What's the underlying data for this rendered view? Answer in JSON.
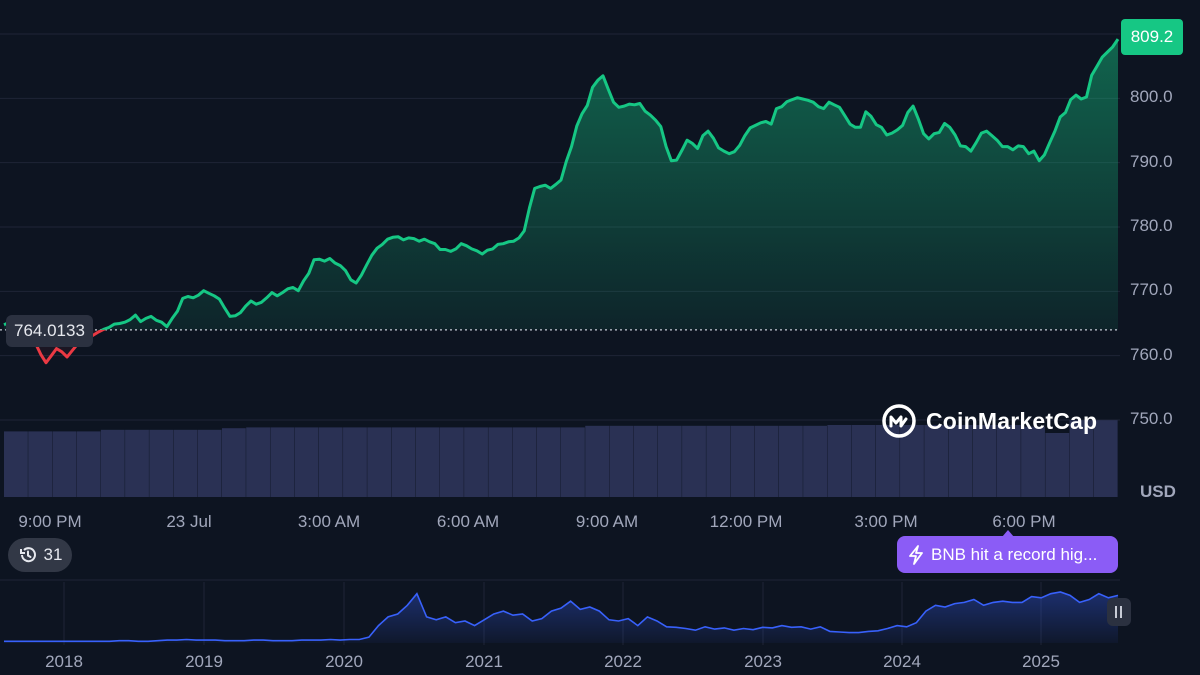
{
  "chart_data": [
    {
      "type": "area",
      "currency_label": "USD",
      "y_ticks": [
        "800.0",
        "790.0",
        "780.0",
        "770.0",
        "760.0",
        "750.0"
      ],
      "ylim": [
        744,
        811
      ],
      "x_ticks": [
        "9:00 PM",
        "23 Jul",
        "3:00 AM",
        "6:00 AM",
        "9:00 AM",
        "12:00 PM",
        "3:00 PM",
        "6:00 PM"
      ],
      "open_price": 764.0133,
      "open_price_label": "764.0133",
      "current_price_label": "809.2",
      "colors": {
        "up": "#16c784",
        "down": "#ea3943",
        "volume": "#2a3154"
      },
      "series": [
        {
          "values": [
            764.8,
            765.2,
            765.0,
            764.7,
            764.1,
            763.2,
            761.9,
            760.2,
            758.9,
            760.0,
            761.1,
            760.6,
            759.8,
            760.8,
            761.8,
            762.1,
            762.8,
            763.2,
            763.7,
            764.1,
            764.4,
            764.9,
            765.0,
            765.2,
            765.6,
            766.3,
            765.3,
            765.8,
            766.1,
            765.5,
            765.2,
            764.5,
            765.8,
            766.9,
            768.9,
            769.2,
            769.0,
            769.4,
            770.1,
            769.7,
            769.3,
            768.8,
            767.4,
            766.1,
            766.2,
            766.7,
            767.7,
            768.5,
            768.0,
            768.3,
            769.0,
            769.8,
            769.3,
            769.8,
            770.4,
            770.6,
            770.1,
            771.6,
            772.8,
            774.9,
            775.0,
            774.7,
            775.1,
            774.4,
            774.0,
            773.2,
            771.8,
            771.3,
            772.5,
            774.1,
            775.6,
            776.7,
            777.3,
            778.1,
            778.4,
            778.5,
            778.0,
            778.3,
            778.2,
            777.8,
            778.1,
            777.7,
            777.4,
            776.5,
            776.5,
            776.2,
            776.6,
            777.4,
            777.1,
            776.6,
            776.3,
            775.8,
            776.4,
            776.6,
            777.3,
            777.4,
            777.7,
            777.8,
            778.3,
            779.4,
            783.0,
            786.0,
            786.3,
            786.5,
            786.0,
            786.6,
            787.3,
            790.2,
            792.5,
            795.7,
            797.6,
            798.9,
            801.7,
            802.8,
            803.5,
            801.4,
            799.4,
            798.6,
            798.8,
            799.1,
            799.0,
            799.2,
            798.0,
            797.4,
            796.6,
            795.6,
            792.5,
            790.3,
            790.4,
            791.9,
            793.5,
            793.0,
            792.2,
            794.2,
            794.9,
            793.8,
            792.3,
            791.8,
            791.4,
            791.7,
            792.7,
            794.2,
            795.4,
            795.8,
            796.2,
            796.4,
            796.0,
            798.4,
            798.7,
            799.5,
            799.8,
            800.1,
            799.9,
            799.7,
            799.4,
            798.7,
            798.4,
            799.4,
            799.0,
            798.6,
            797.3,
            796.0,
            795.5,
            795.5,
            797.9,
            797.2,
            795.9,
            795.5,
            794.3,
            794.6,
            795.1,
            795.8,
            797.8,
            798.8,
            796.8,
            794.5,
            793.7,
            794.5,
            794.7,
            796.1,
            795.5,
            794.3,
            792.6,
            792.5,
            791.8,
            793.1,
            794.6,
            794.9,
            794.2,
            793.5,
            792.5,
            792.5,
            792.0,
            792.6,
            792.5,
            791.4,
            791.8,
            790.3,
            791.2,
            793.1,
            794.9,
            797.1,
            797.8,
            799.8,
            800.5,
            799.9,
            800.2,
            803.6,
            805.0,
            806.4,
            807.2,
            808.0,
            809.2
          ]
        }
      ],
      "volume_levels": [
        0.82,
        0.82,
        0.82,
        0.82,
        0.84,
        0.84,
        0.84,
        0.84,
        0.84,
        0.86,
        0.87,
        0.87,
        0.87,
        0.87,
        0.87,
        0.87,
        0.87,
        0.87,
        0.87,
        0.87,
        0.87,
        0.87,
        0.87,
        0.87,
        0.89,
        0.89,
        0.89,
        0.89,
        0.89,
        0.89,
        0.89,
        0.89,
        0.89,
        0.89,
        0.9,
        0.9,
        0.9,
        0.9,
        0.9,
        0.9,
        0.9,
        0.9,
        0.88,
        0.8,
        0.96,
        0.96
      ]
    },
    {
      "type": "line",
      "x_ticks": [
        "2018",
        "2019",
        "2020",
        "2021",
        "2022",
        "2023",
        "2024",
        "2025"
      ],
      "colors": {
        "line": "#3861fb"
      },
      "series": [
        {
          "values": [
            0.03,
            0.03,
            0.03,
            0.03,
            0.03,
            0.03,
            0.03,
            0.03,
            0.03,
            0.03,
            0.03,
            0.03,
            0.04,
            0.04,
            0.03,
            0.03,
            0.04,
            0.05,
            0.05,
            0.06,
            0.05,
            0.05,
            0.05,
            0.04,
            0.04,
            0.04,
            0.05,
            0.05,
            0.04,
            0.04,
            0.04,
            0.05,
            0.05,
            0.05,
            0.06,
            0.05,
            0.06,
            0.06,
            0.1,
            0.3,
            0.45,
            0.5,
            0.65,
            0.85,
            0.45,
            0.4,
            0.45,
            0.35,
            0.38,
            0.3,
            0.4,
            0.5,
            0.55,
            0.48,
            0.5,
            0.38,
            0.42,
            0.55,
            0.6,
            0.72,
            0.58,
            0.62,
            0.55,
            0.4,
            0.38,
            0.42,
            0.3,
            0.45,
            0.38,
            0.28,
            0.27,
            0.25,
            0.22,
            0.28,
            0.24,
            0.26,
            0.22,
            0.25,
            0.23,
            0.27,
            0.26,
            0.3,
            0.27,
            0.28,
            0.24,
            0.28,
            0.2,
            0.19,
            0.18,
            0.18,
            0.2,
            0.21,
            0.25,
            0.3,
            0.28,
            0.35,
            0.55,
            0.65,
            0.62,
            0.68,
            0.7,
            0.75,
            0.65,
            0.7,
            0.72,
            0.7,
            0.7,
            0.8,
            0.78,
            0.85,
            0.88,
            0.82,
            0.7,
            0.75,
            0.85,
            0.78,
            0.82
          ]
        }
      ]
    }
  ],
  "watermark": {
    "brand": "CoinMarketCap"
  },
  "history_badge": {
    "count": "31"
  },
  "news_pill": {
    "text": "BNB hit a record hig..."
  }
}
